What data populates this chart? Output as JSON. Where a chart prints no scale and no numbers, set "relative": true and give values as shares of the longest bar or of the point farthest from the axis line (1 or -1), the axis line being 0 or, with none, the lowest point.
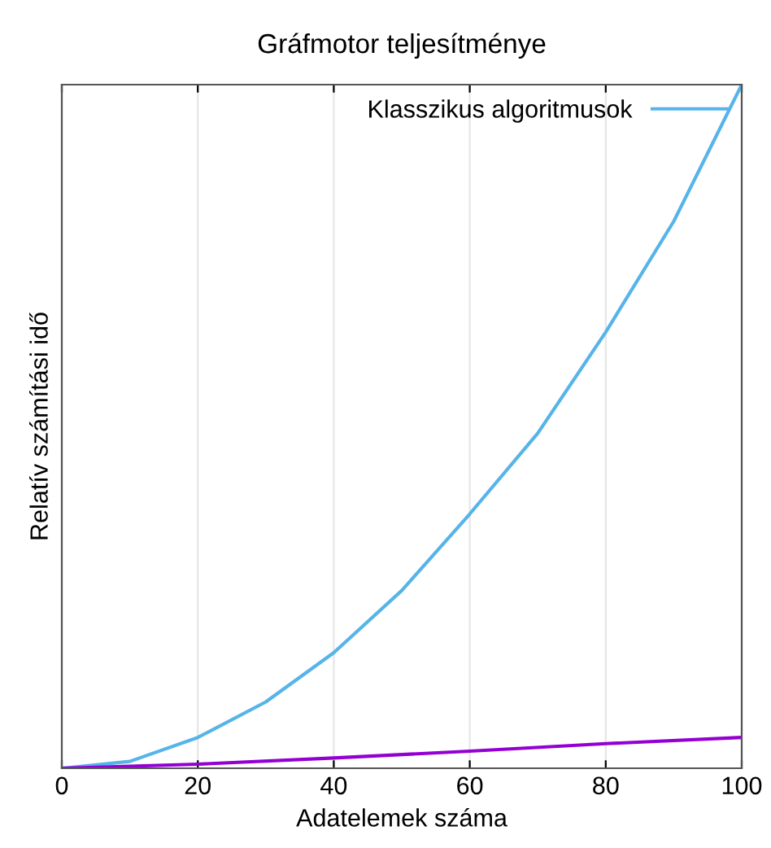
{
  "chart_data": {
    "type": "line",
    "title": "Gráfmotor teljesítménye",
    "xlabel": "Adatelemek száma",
    "ylabel": "Relatív számítási idő",
    "relative": true,
    "xlim": [
      0,
      100
    ],
    "xticks": [
      0,
      20,
      40,
      60,
      80,
      100
    ],
    "grid": "x",
    "legend": "top right",
    "marker": "none",
    "line_style": "solid",
    "series": [
      {
        "name": "Klasszikus algoritmusok",
        "color": "#56b4e9",
        "x": [
          0,
          10,
          20,
          30,
          40,
          50,
          60,
          70,
          80,
          90,
          100
        ],
        "values": [
          0,
          0.01,
          0.045,
          0.097,
          0.169,
          0.26,
          0.372,
          0.49,
          0.638,
          0.8,
          1.0
        ]
      },
      {
        "color": "#9400d3",
        "x": [
          0,
          20,
          40,
          60,
          80,
          100
        ],
        "values": [
          0,
          0.006,
          0.015,
          0.025,
          0.036,
          0.045
        ]
      }
    ]
  }
}
